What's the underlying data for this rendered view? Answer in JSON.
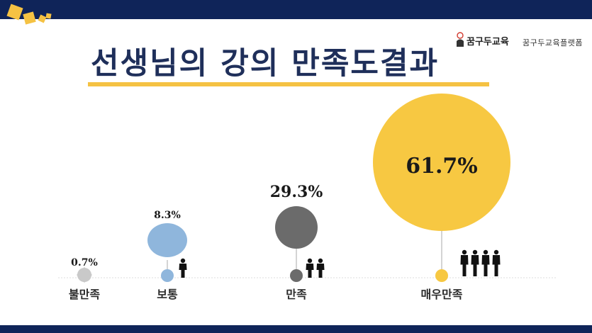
{
  "title": "선생님의 강의 만족도결과",
  "brand": {
    "logo_text": "꿈구두교육",
    "platform": "꿈구두교육플랫폼"
  },
  "colors": {
    "navy": "#0f2459",
    "accent": "#f5c243",
    "unsatisfied": "#c9c9c9",
    "average": "#8fb6dc",
    "satisfied": "#6b6b6b",
    "very_satisfied": "#f7c842"
  },
  "chart_data": {
    "type": "bubble",
    "title": "선생님의 강의 만족도결과",
    "categories": [
      "불만족",
      "보통",
      "만족",
      "매우만족"
    ],
    "values": [
      0.7,
      8.3,
      29.3,
      61.7
    ],
    "value_labels": [
      "0.7%",
      "8.3%",
      "29.3%",
      "61.7%"
    ],
    "people_icons": [
      0,
      1,
      2,
      4
    ],
    "grid": false,
    "legend": "none"
  }
}
